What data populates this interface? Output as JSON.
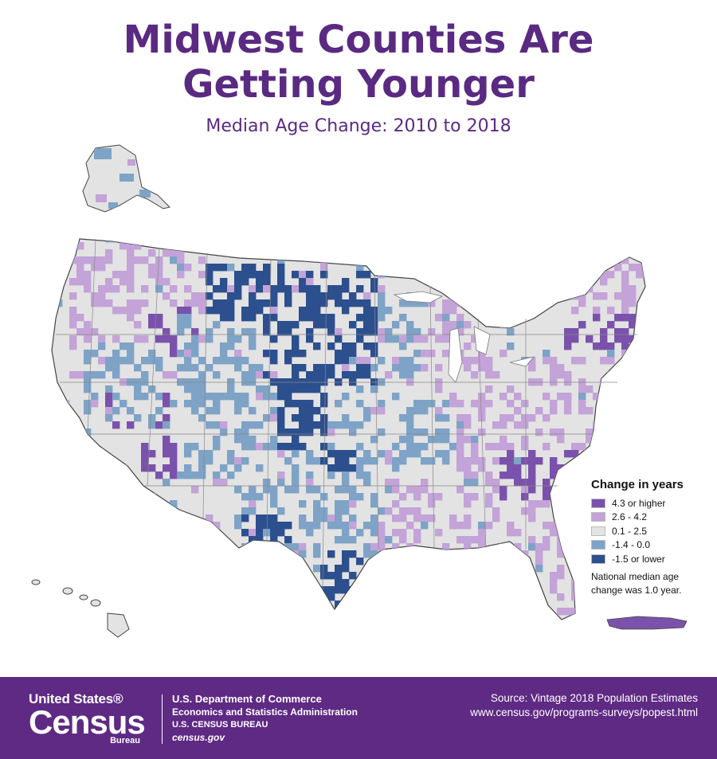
{
  "title_line1": "Midwest Counties Are",
  "title_line2": "Getting Younger",
  "subtitle": "Median Age Change: 2010 to 2018",
  "colors": {
    "brand_purple": "#5e2a84",
    "class_high": "#7b52ab",
    "class_mid_high": "#c3a3d8",
    "class_neutral": "#e3e3e3",
    "class_mid_low": "#7ea3c7",
    "class_low": "#2c4f8e"
  },
  "legend": {
    "title": "Change in years",
    "items": [
      {
        "label": "4.3 or higher",
        "color": "#7b52ab"
      },
      {
        "label": "2.6 - 4.2",
        "color": "#c3a3d8"
      },
      {
        "label": "0.1 - 2.5",
        "color": "#e3e3e3"
      },
      {
        "label": "-1.4 - 0.0",
        "color": "#7ea3c7"
      },
      {
        "label": "-1.5 or lower",
        "color": "#2c4f8e"
      }
    ],
    "note_line1": "National median age",
    "note_line2": "change was 1.0 year."
  },
  "footer": {
    "logo_line1": "United States®",
    "logo_line2": "Census",
    "logo_line3": "Bureau",
    "dept_line1": "U.S. Department of Commerce",
    "dept_line2": "Economics and Statistics Administration",
    "dept_line3": "U.S. CENSUS BUREAU",
    "dept_line4": "census.gov",
    "source_line1": "Source: Vintage 2018 Population Estimates",
    "source_line2": "www.census.gov/programs-surveys/popest.html"
  }
}
